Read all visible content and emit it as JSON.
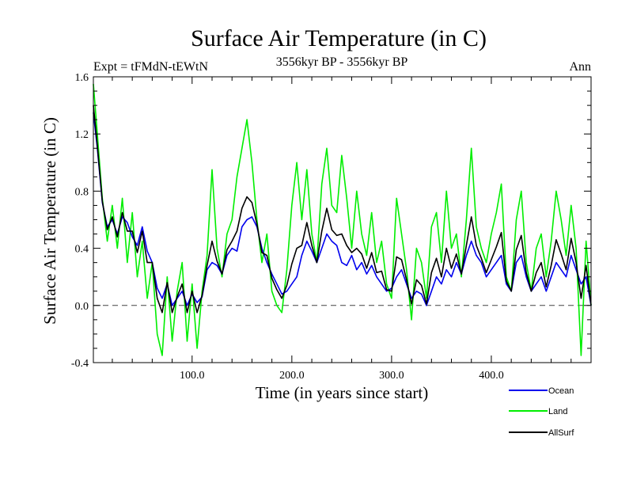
{
  "chart_data": {
    "type": "line",
    "title": "Surface Air Temperature (in C)",
    "subtitle_left": "Expt = tFMdN-tEWtN",
    "subtitle_center": "3556kyr BP - 3556kyr BP",
    "subtitle_right": "Ann",
    "xlabel": "Time (in years since start)",
    "ylabel": "Surface Air Temperature (in C)",
    "xlim": [
      1,
      500
    ],
    "ylim": [
      -0.4,
      1.6
    ],
    "x_ticks": [
      100,
      200,
      300,
      400
    ],
    "x_tick_labels": [
      "100.0",
      "200.0",
      "300.0",
      "400.0"
    ],
    "y_ticks": [
      -0.4,
      0.0,
      0.4,
      0.8,
      1.2,
      1.6
    ],
    "y_tick_labels": [
      "-0.4",
      "0.0",
      "0.4",
      "0.8",
      "1.2",
      "1.6"
    ],
    "reference_line": 0.0,
    "legend_position": "bottom-right",
    "series": [
      {
        "name": "Ocean",
        "color": "#0000ee",
        "x": [
          1,
          5,
          10,
          15,
          20,
          25,
          30,
          35,
          40,
          45,
          50,
          55,
          60,
          65,
          70,
          75,
          80,
          85,
          90,
          95,
          100,
          105,
          110,
          115,
          120,
          125,
          130,
          135,
          140,
          145,
          150,
          155,
          160,
          165,
          170,
          175,
          180,
          185,
          190,
          195,
          200,
          205,
          210,
          215,
          220,
          225,
          230,
          235,
          240,
          245,
          250,
          255,
          260,
          265,
          270,
          275,
          280,
          285,
          290,
          295,
          300,
          305,
          310,
          315,
          320,
          325,
          330,
          335,
          340,
          345,
          350,
          355,
          360,
          365,
          370,
          375,
          380,
          385,
          390,
          395,
          400,
          405,
          410,
          415,
          420,
          425,
          430,
          435,
          440,
          445,
          450,
          455,
          460,
          465,
          470,
          475,
          480,
          485,
          490,
          495,
          500
        ],
        "values": [
          1.35,
          1.1,
          0.72,
          0.55,
          0.6,
          0.5,
          0.62,
          0.58,
          0.48,
          0.42,
          0.55,
          0.38,
          0.3,
          0.12,
          0.05,
          0.15,
          0.0,
          0.05,
          0.1,
          0.0,
          0.08,
          0.02,
          0.06,
          0.25,
          0.3,
          0.28,
          0.22,
          0.35,
          0.4,
          0.38,
          0.55,
          0.6,
          0.62,
          0.55,
          0.4,
          0.3,
          0.22,
          0.15,
          0.08,
          0.1,
          0.15,
          0.2,
          0.35,
          0.45,
          0.38,
          0.3,
          0.4,
          0.5,
          0.45,
          0.42,
          0.3,
          0.28,
          0.35,
          0.25,
          0.3,
          0.22,
          0.28,
          0.2,
          0.15,
          0.1,
          0.12,
          0.2,
          0.25,
          0.15,
          0.05,
          0.1,
          0.08,
          0.0,
          0.1,
          0.2,
          0.15,
          0.25,
          0.2,
          0.3,
          0.22,
          0.35,
          0.45,
          0.35,
          0.3,
          0.2,
          0.25,
          0.3,
          0.35,
          0.15,
          0.1,
          0.3,
          0.35,
          0.2,
          0.1,
          0.15,
          0.2,
          0.1,
          0.2,
          0.3,
          0.25,
          0.2,
          0.35,
          0.25,
          0.15,
          0.2,
          0.0
        ]
      },
      {
        "name": "Land",
        "color": "#00ee00",
        "x": [
          1,
          5,
          10,
          15,
          20,
          25,
          30,
          35,
          40,
          45,
          50,
          55,
          60,
          65,
          70,
          75,
          80,
          85,
          90,
          95,
          100,
          105,
          110,
          115,
          120,
          125,
          130,
          135,
          140,
          145,
          150,
          155,
          160,
          165,
          170,
          175,
          180,
          185,
          190,
          195,
          200,
          205,
          210,
          215,
          220,
          225,
          230,
          235,
          240,
          245,
          250,
          255,
          260,
          265,
          270,
          275,
          280,
          285,
          290,
          295,
          300,
          305,
          310,
          315,
          320,
          325,
          330,
          335,
          340,
          345,
          350,
          355,
          360,
          365,
          370,
          375,
          380,
          385,
          390,
          395,
          400,
          405,
          410,
          415,
          420,
          425,
          430,
          435,
          440,
          445,
          450,
          455,
          460,
          465,
          470,
          475,
          480,
          485,
          490,
          495,
          500
        ],
        "values": [
          1.55,
          1.2,
          0.75,
          0.45,
          0.7,
          0.4,
          0.75,
          0.3,
          0.65,
          0.2,
          0.45,
          0.05,
          0.3,
          -0.2,
          -0.35,
          0.2,
          -0.25,
          0.1,
          0.3,
          -0.25,
          0.15,
          -0.3,
          0.1,
          0.35,
          0.95,
          0.4,
          0.2,
          0.5,
          0.6,
          0.9,
          1.1,
          1.3,
          1.0,
          0.6,
          0.3,
          0.5,
          0.1,
          0.0,
          -0.05,
          0.25,
          0.7,
          1.0,
          0.6,
          0.95,
          0.5,
          0.3,
          0.85,
          1.1,
          0.7,
          0.65,
          1.05,
          0.75,
          0.4,
          0.8,
          0.5,
          0.35,
          0.65,
          0.3,
          0.45,
          0.15,
          0.05,
          0.75,
          0.5,
          0.25,
          -0.1,
          0.4,
          0.3,
          0.05,
          0.55,
          0.65,
          0.3,
          0.8,
          0.4,
          0.5,
          0.2,
          0.6,
          1.1,
          0.55,
          0.4,
          0.3,
          0.5,
          0.65,
          0.85,
          0.2,
          0.1,
          0.6,
          0.8,
          0.3,
          0.1,
          0.4,
          0.5,
          0.2,
          0.45,
          0.8,
          0.6,
          0.35,
          0.7,
          0.4,
          -0.35,
          0.45,
          0.0
        ]
      },
      {
        "name": "AllSurf",
        "color": "#000000",
        "x": [
          1,
          5,
          10,
          15,
          20,
          25,
          30,
          35,
          40,
          45,
          50,
          55,
          60,
          65,
          70,
          75,
          80,
          85,
          90,
          95,
          100,
          105,
          110,
          115,
          120,
          125,
          130,
          135,
          140,
          145,
          150,
          155,
          160,
          165,
          170,
          175,
          180,
          185,
          190,
          195,
          200,
          205,
          210,
          215,
          220,
          225,
          230,
          235,
          240,
          245,
          250,
          255,
          260,
          265,
          270,
          275,
          280,
          285,
          290,
          295,
          300,
          305,
          310,
          315,
          320,
          325,
          330,
          335,
          340,
          345,
          350,
          355,
          360,
          365,
          370,
          375,
          380,
          385,
          390,
          395,
          400,
          405,
          410,
          415,
          420,
          425,
          430,
          435,
          440,
          445,
          450,
          455,
          460,
          465,
          470,
          475,
          480,
          485,
          490,
          495,
          500
        ],
        "values": [
          1.4,
          1.12,
          0.73,
          0.53,
          0.62,
          0.48,
          0.65,
          0.52,
          0.52,
          0.37,
          0.52,
          0.3,
          0.3,
          0.05,
          -0.05,
          0.16,
          -0.05,
          0.06,
          0.15,
          -0.05,
          0.1,
          -0.05,
          0.07,
          0.28,
          0.45,
          0.31,
          0.22,
          0.39,
          0.45,
          0.52,
          0.68,
          0.76,
          0.72,
          0.57,
          0.37,
          0.35,
          0.19,
          0.11,
          0.05,
          0.14,
          0.29,
          0.4,
          0.42,
          0.58,
          0.42,
          0.3,
          0.52,
          0.68,
          0.53,
          0.49,
          0.5,
          0.42,
          0.37,
          0.4,
          0.36,
          0.26,
          0.37,
          0.23,
          0.24,
          0.11,
          0.1,
          0.34,
          0.32,
          0.18,
          0.01,
          0.18,
          0.14,
          0.01,
          0.23,
          0.33,
          0.2,
          0.4,
          0.26,
          0.36,
          0.22,
          0.42,
          0.62,
          0.42,
          0.33,
          0.23,
          0.32,
          0.41,
          0.51,
          0.17,
          0.1,
          0.39,
          0.49,
          0.23,
          0.1,
          0.23,
          0.3,
          0.13,
          0.28,
          0.46,
          0.36,
          0.25,
          0.47,
          0.3,
          0.05,
          0.28,
          0.0
        ]
      }
    ]
  }
}
